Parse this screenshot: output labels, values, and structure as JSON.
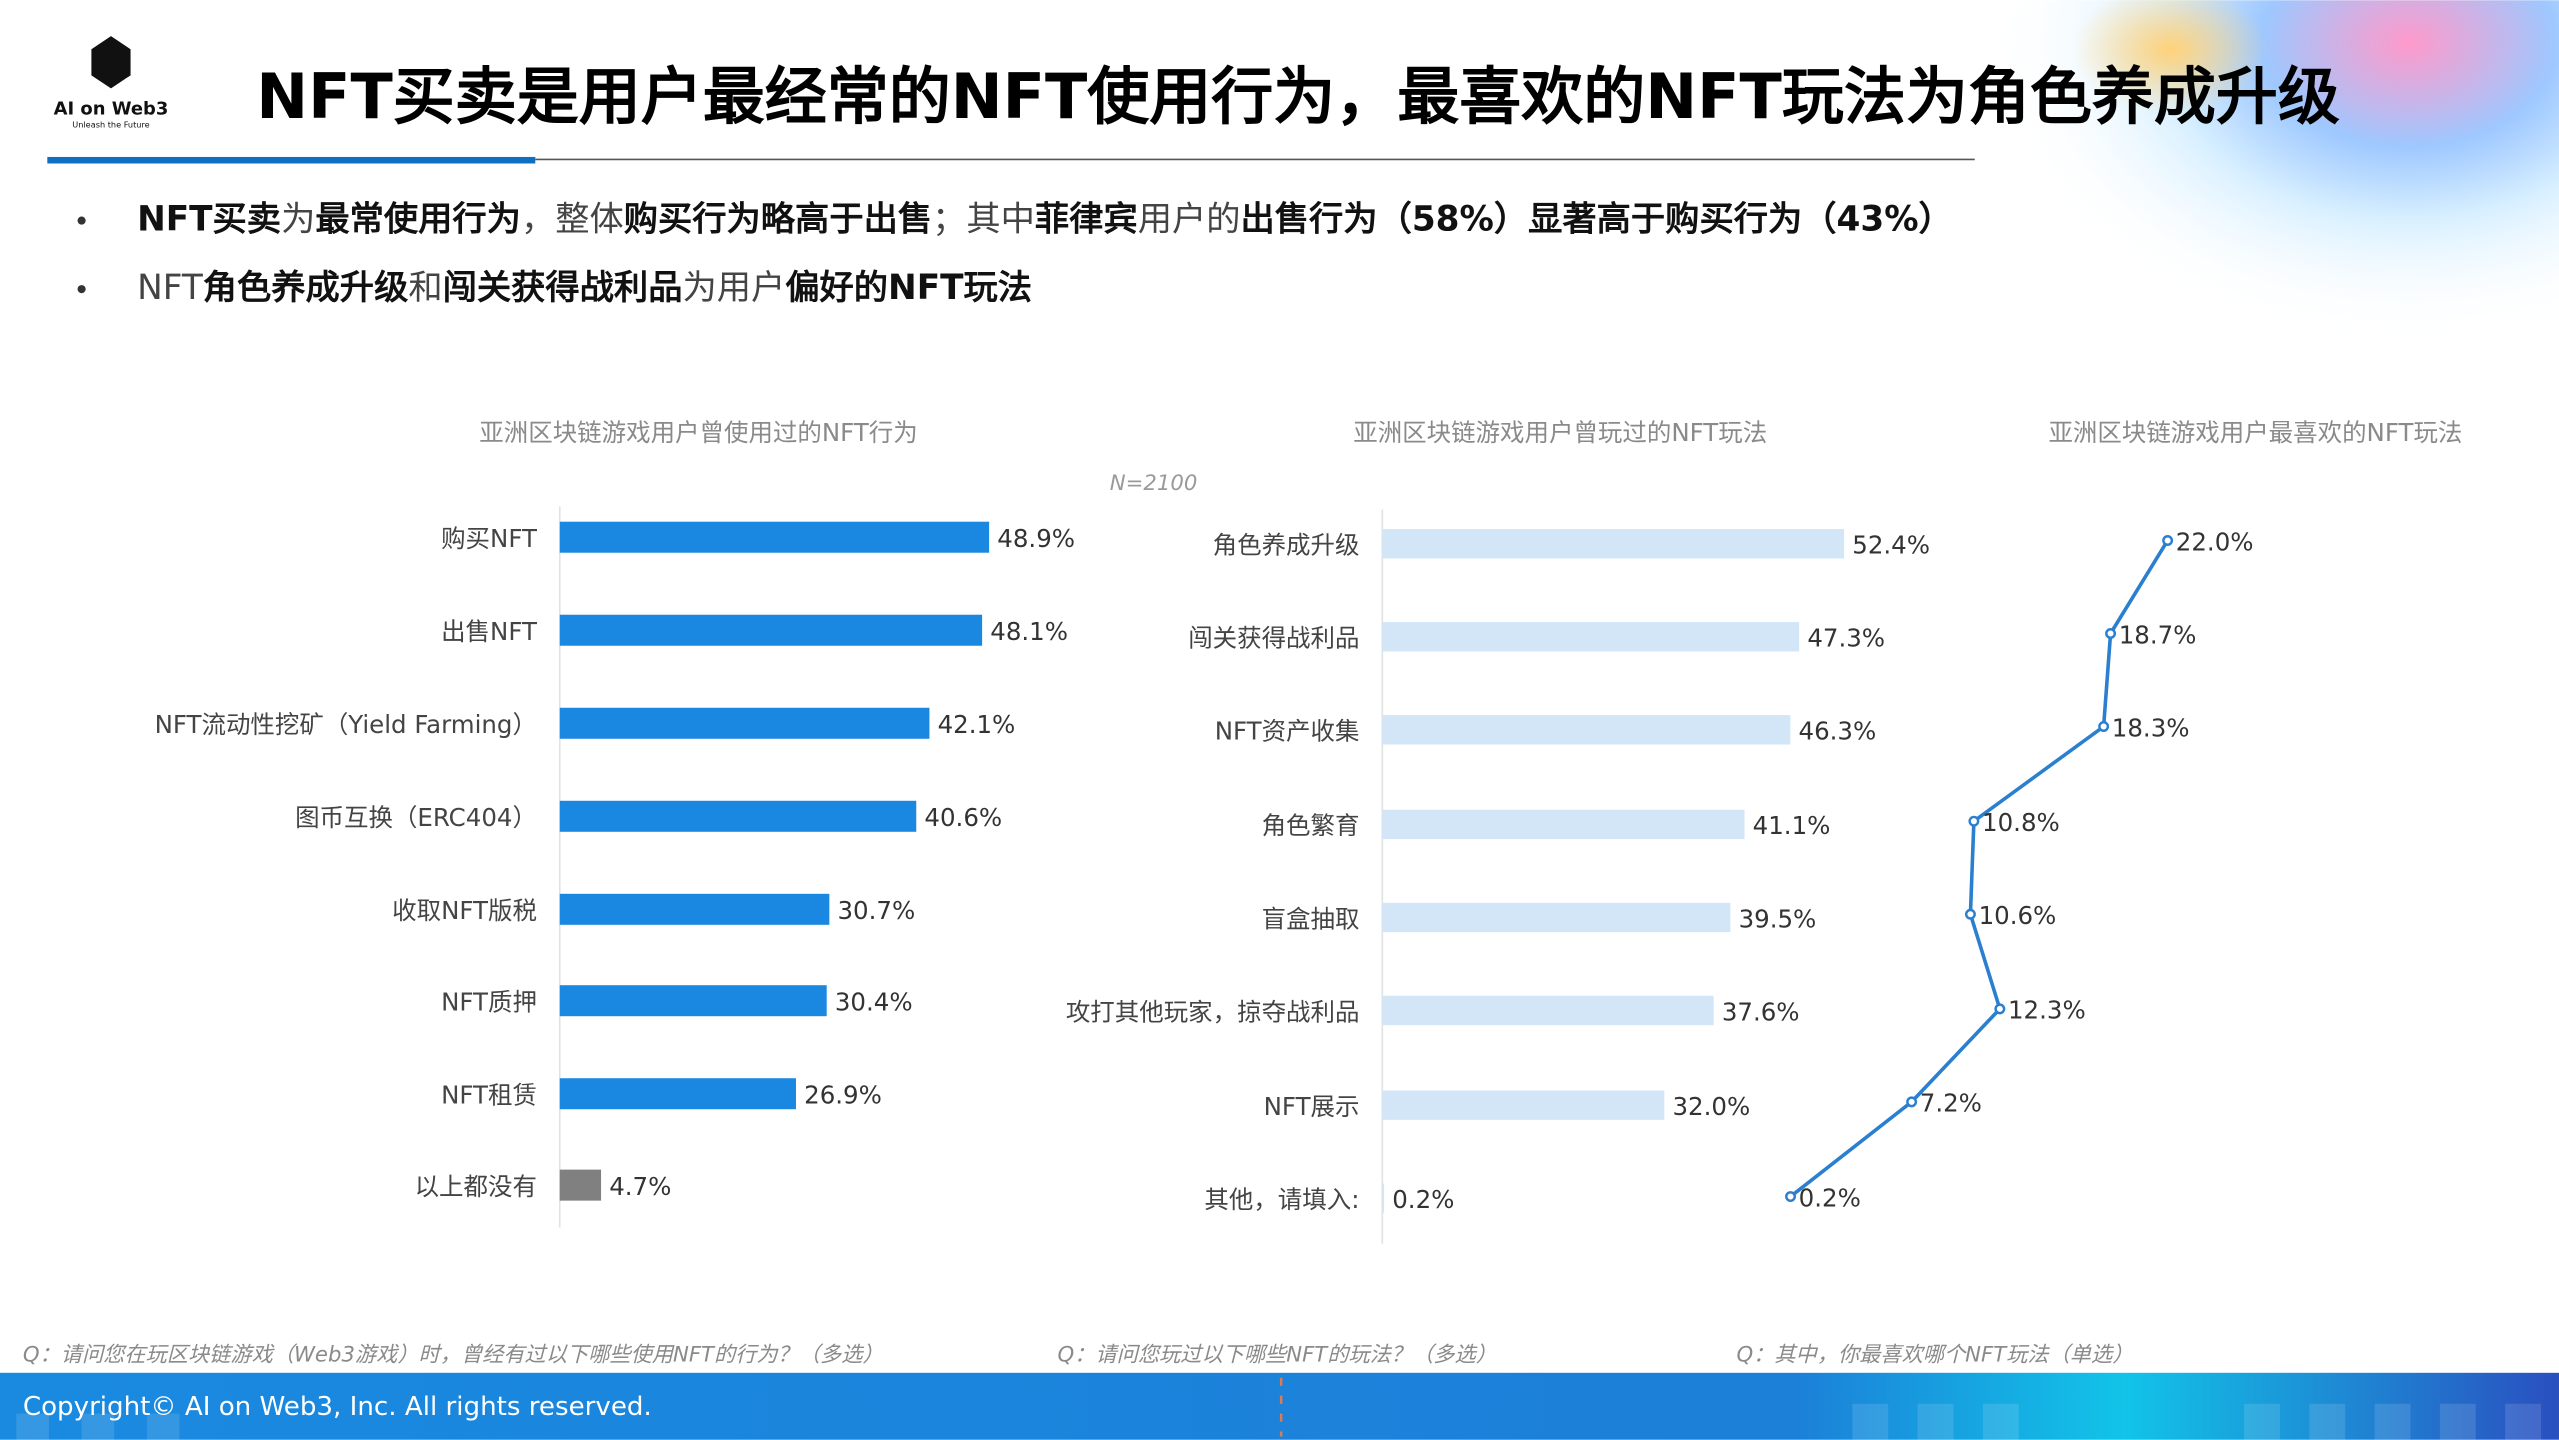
{
  "logo": {
    "name": "AI on Web3",
    "tagline": "Unleash the Future"
  },
  "title": "NFT买卖是用户最经常的NFT使用行为，最喜欢的NFT玩法为角色养成升级",
  "bullets": [
    [
      {
        "t": "NFT买卖",
        "b": true
      },
      {
        "t": "为",
        "b": false
      },
      {
        "t": "最常使用行为",
        "b": true
      },
      {
        "t": "，整体",
        "b": false
      },
      {
        "t": "购买行为略高于出售",
        "b": true
      },
      {
        "t": "；其中",
        "b": false
      },
      {
        "t": "菲律宾",
        "b": true
      },
      {
        "t": "用户的",
        "b": false
      },
      {
        "t": "出售行为（58%）显著高于购买行为（43%）",
        "b": true
      }
    ],
    [
      {
        "t": "NFT",
        "b": false
      },
      {
        "t": "角色养成升级",
        "b": true
      },
      {
        "t": "和",
        "b": false
      },
      {
        "t": "闯关获得战利品",
        "b": true
      },
      {
        "t": "为用户",
        "b": false
      },
      {
        "t": "偏好的NFT玩法",
        "b": true
      }
    ]
  ],
  "sample_note": "N=2100",
  "colors": {
    "primary": "#1a88e0",
    "light": "#d2e6f8",
    "gray": "#808080",
    "line": "#2a7fcf",
    "footer": "#1a86dc"
  },
  "chart_data": [
    {
      "type": "bar",
      "orientation": "horizontal",
      "title": "亚洲区块链游戏用户曾使用过的NFT行为",
      "categories": [
        "购买NFT",
        "出售NFT",
        "NFT流动性挖矿（Yield Farming）",
        "图币互换（ERC404）",
        "收取NFT版税",
        "NFT质押",
        "NFT租赁",
        "以上都没有"
      ],
      "values": [
        48.9,
        48.1,
        42.1,
        40.6,
        30.7,
        30.4,
        26.9,
        4.7
      ],
      "labels": [
        "48.9%",
        "48.1%",
        "42.1%",
        "40.6%",
        "30.7%",
        "30.4%",
        "26.9%",
        "4.7%"
      ],
      "unit": "%",
      "question": "Q：请问您在玩区块链游戏（Web3游戏）时，曾经有过以下哪些使用NFT的行为？（多选）"
    },
    {
      "type": "bar",
      "orientation": "horizontal",
      "title": "亚洲区块链游戏用户曾玩过的NFT玩法",
      "categories": [
        "角色养成升级",
        "闯关获得战利品",
        "NFT资产收集",
        "角色繁育",
        "盲盒抽取",
        "攻打其他玩家，掠夺战利品",
        "NFT展示",
        "其他，请填入:"
      ],
      "values": [
        52.4,
        47.3,
        46.3,
        41.1,
        39.5,
        37.6,
        32.0,
        0.2
      ],
      "labels": [
        "52.4%",
        "47.3%",
        "46.3%",
        "41.1%",
        "39.5%",
        "37.6%",
        "32.0%",
        "0.2%"
      ],
      "unit": "%",
      "question": "Q：请问您玩过以下哪些NFT的玩法？（多选）"
    },
    {
      "type": "line",
      "orientation": "vertical-categories",
      "title": "亚洲区块链游戏用户最喜欢的NFT玩法",
      "categories": [
        "角色养成升级",
        "闯关获得战利品",
        "NFT资产收集",
        "角色繁育",
        "盲盒抽取",
        "攻打其他玩家，掠夺战利品",
        "NFT展示",
        "其他，请填入:"
      ],
      "values": [
        22.0,
        18.7,
        18.3,
        10.8,
        10.6,
        12.3,
        7.2,
        0.2
      ],
      "labels": [
        "22.0%",
        "18.7%",
        "18.3%",
        "10.8%",
        "10.6%",
        "12.3%",
        "7.2%",
        "0.2%"
      ],
      "unit": "%",
      "question": "Q：其中，你最喜欢哪个NFT玩法（单选）"
    }
  ],
  "footer": {
    "copyright": "Copyright© AI on Web3, Inc. All rights reserved."
  }
}
